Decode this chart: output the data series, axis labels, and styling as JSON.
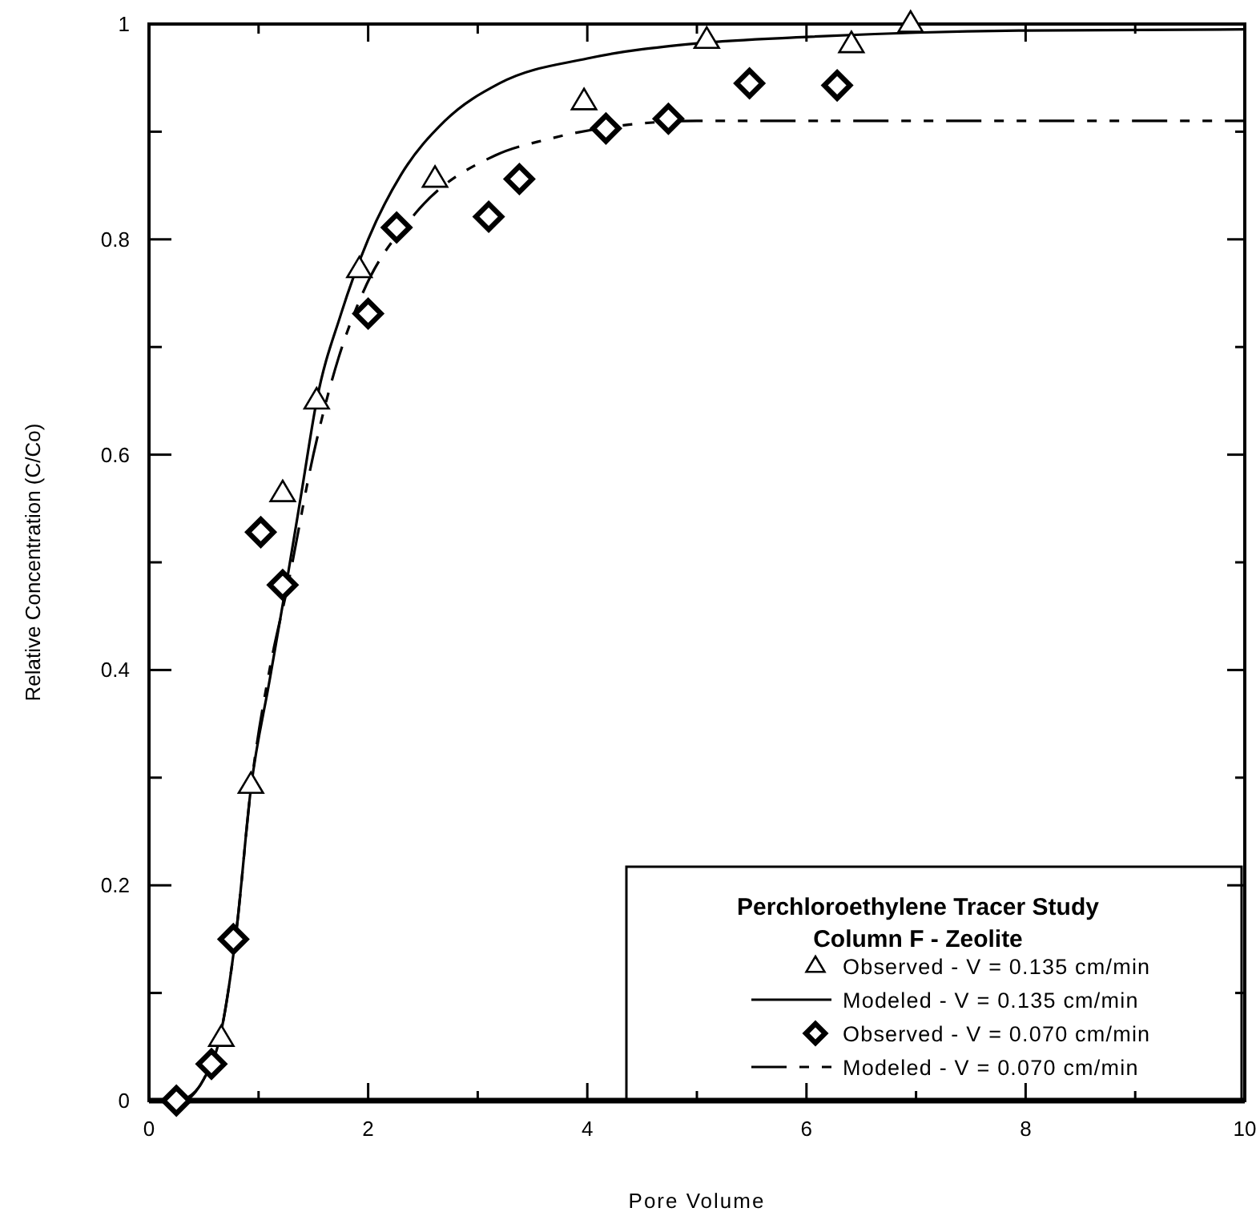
{
  "chart_data": {
    "type": "scatter",
    "xlabel": "Pore Volume",
    "ylabel": "Relative Concentration (C/Co)",
    "legend_title": "Perchloroethylene Tracer Study\nColumn F - Zeolite",
    "legend": "bottom right",
    "xlim": [
      0,
      10
    ],
    "ylim": [
      0,
      1
    ],
    "xticks": [
      0,
      {
        "value": 1,
        "label": null
      },
      2,
      {
        "value": 3,
        "label": null
      },
      4,
      {
        "value": 5,
        "label": null
      },
      6,
      {
        "value": 7,
        "label": null
      },
      8,
      {
        "value": 9,
        "label": null
      },
      10
    ],
    "yticks": [
      0,
      {
        "value": 0.1,
        "label": null
      },
      0.2,
      {
        "value": 0.3,
        "label": null
      },
      0.4,
      {
        "value": 0.5,
        "label": null
      },
      0.6,
      {
        "value": 0.7,
        "label": null
      },
      0.8,
      {
        "value": 0.9,
        "label": null
      },
      1
    ],
    "series": [
      {
        "name": "Observed - V = 0.135 cm/min",
        "marker": "triangle",
        "color": "#000000",
        "x": [
          0.66,
          0.93,
          1.22,
          1.53,
          1.92,
          2.61,
          3.97,
          5.09,
          6.41,
          6.95
        ],
        "values": [
          0.058,
          0.293,
          0.564,
          0.65,
          0.772,
          0.856,
          0.928,
          0.985,
          0.981,
          1.0
        ]
      },
      {
        "name": "Modeled - V = 0.135 cm/min",
        "type": "line",
        "line_style": "solid",
        "marker": "none",
        "color": "#000000",
        "x": [
          0.35,
          0.5,
          0.65,
          0.8,
          0.93,
          1.1,
          1.27,
          1.4,
          1.53,
          1.75,
          2,
          2.3,
          2.7,
          3.2,
          4,
          5,
          6,
          7,
          8,
          10
        ],
        "values": [
          0,
          0.02,
          0.06,
          0.16,
          0.29,
          0.39,
          0.49,
          0.57,
          0.65,
          0.73,
          0.8,
          0.86,
          0.91,
          0.945,
          0.968,
          0.982,
          0.988,
          0.992,
          0.994,
          0.995
        ]
      },
      {
        "name": "Observed - V = 0.070 cm/min",
        "marker": "diamond",
        "color": "#000000",
        "x": [
          0.25,
          0.57,
          0.77,
          1.02,
          1.22,
          2.0,
          2.26,
          3.1,
          3.38,
          4.17,
          4.74,
          5.48,
          6.28
        ],
        "values": [
          0,
          0.034,
          0.15,
          0.528,
          0.479,
          0.731,
          0.811,
          0.821,
          0.856,
          0.903,
          0.912,
          0.945,
          0.943
        ]
      },
      {
        "name": "Modeled - V = 0.070 cm/min",
        "type": "line",
        "line_style": "dashed",
        "marker": "none",
        "color": "#000000",
        "x": [
          0.3,
          0.5,
          0.65,
          0.8,
          0.93,
          1.1,
          1.27,
          1.5,
          1.73,
          1.95,
          2.43,
          3.16,
          3.64,
          4.33,
          5,
          6,
          7,
          8,
          9,
          10
        ],
        "values": [
          0,
          0.02,
          0.06,
          0.16,
          0.29,
          0.4,
          0.48,
          0.6,
          0.69,
          0.75,
          0.824,
          0.878,
          0.893,
          0.906,
          0.91,
          0.91,
          0.91,
          0.91,
          0.91,
          0.91
        ]
      }
    ]
  }
}
